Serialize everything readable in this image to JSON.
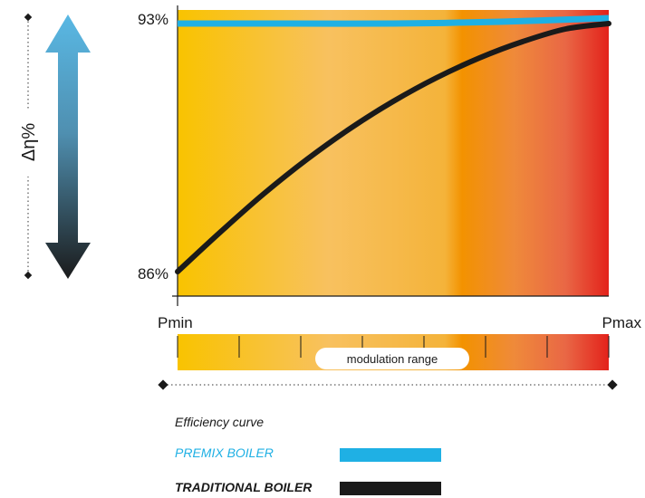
{
  "chart_data": {
    "type": "line",
    "y_axis": {
      "range": [
        86,
        93
      ],
      "unit": "%",
      "tick_labels": [
        "93%",
        "86%"
      ],
      "label": "Δη%"
    },
    "x_axis": {
      "tick_labels": [
        "Pmin",
        "Pmax"
      ],
      "range_label": "modulation range"
    },
    "background": "gradient yellow to red",
    "series": [
      {
        "name": "PREMIX BOILER",
        "color": "#1fb0e4",
        "x": [
          0,
          0.25,
          0.5,
          0.75,
          1.0
        ],
        "y": [
          92.85,
          92.85,
          92.85,
          92.9,
          93.0
        ]
      },
      {
        "name": "TRADITIONAL BOILER",
        "color": "#1a1a1a",
        "x": [
          0,
          0.1,
          0.2,
          0.3,
          0.4,
          0.5,
          0.6,
          0.7,
          0.8,
          0.9,
          1.0
        ],
        "y": [
          86.0,
          87.1,
          88.15,
          89.1,
          89.95,
          90.7,
          91.35,
          91.9,
          92.35,
          92.7,
          92.85
        ]
      }
    ],
    "legend": {
      "title": "Efficiency curve",
      "placement": "bottom"
    }
  },
  "colors": {
    "premix": "#1fb0e4",
    "traditional": "#1a1a1a",
    "gradient_start": "#f9c300",
    "gradient_mid": "#f8c15f",
    "gradient_orange": "#f39200",
    "gradient_end": "#e3221b"
  }
}
